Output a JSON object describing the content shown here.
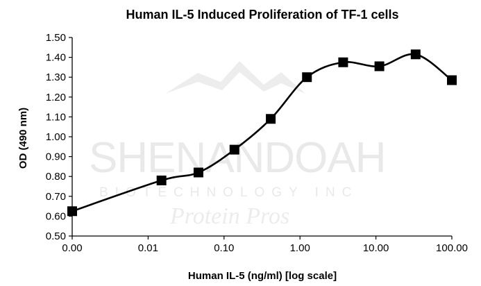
{
  "chart_data": {
    "type": "line",
    "title": "Human IL-5 Induced Proliferation of TF-1 cells",
    "xlabel": "Human IL-5 (ng/ml) [log scale]",
    "ylabel": "OD (490 nm)",
    "x_tick_labels": [
      "0.00",
      "0.01",
      "0.10",
      "1.00",
      "10.00",
      "100.00"
    ],
    "y_tick_labels": [
      "0.50",
      "0.60",
      "0.70",
      "0.80",
      "0.90",
      "1.00",
      "1.10",
      "1.20",
      "1.30",
      "1.40",
      "1.50"
    ],
    "ylim": [
      0.5,
      1.5
    ],
    "grid": false,
    "legend": "none",
    "line_color": "#000000",
    "marker": "square",
    "x": [
      0.0,
      0.015,
      0.046,
      0.137,
      0.412,
      1.235,
      3.704,
      11.11,
      33.33,
      100.0
    ],
    "y": [
      0.625,
      0.78,
      0.82,
      0.935,
      1.09,
      1.3,
      1.375,
      1.355,
      1.415,
      1.285
    ]
  },
  "watermark": {
    "line1": "SHENANDOAH",
    "line2": "BIOTECHNOLOGY INC",
    "line3": "Protein Pros"
  }
}
